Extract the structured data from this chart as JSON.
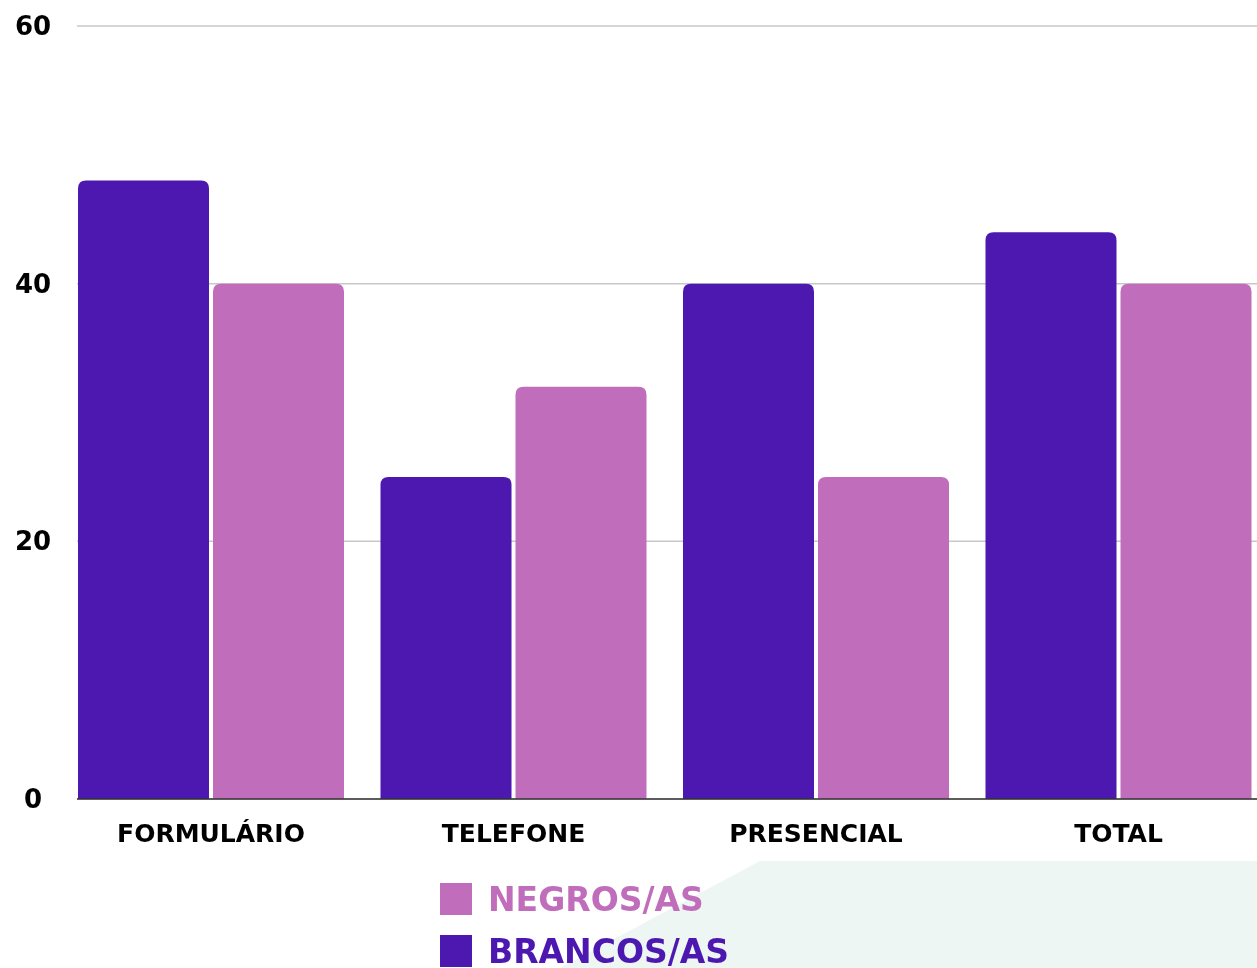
{
  "chart_data": {
    "type": "bar",
    "categories": [
      "FORMULÁRIO",
      "TELEFONE",
      "PRESENCIAL",
      "TOTAL"
    ],
    "series": [
      {
        "name": "BRANCOS/AS",
        "color": "#4c18b0",
        "values": [
          48,
          25,
          40,
          44
        ]
      },
      {
        "name": "NEGROS/AS",
        "color": "#c06ebb",
        "values": [
          40,
          32,
          25,
          40
        ]
      }
    ],
    "ylim": [
      0,
      60
    ],
    "yticks": [
      0,
      20,
      40,
      60
    ],
    "grid": "y",
    "legend": "bottom"
  }
}
